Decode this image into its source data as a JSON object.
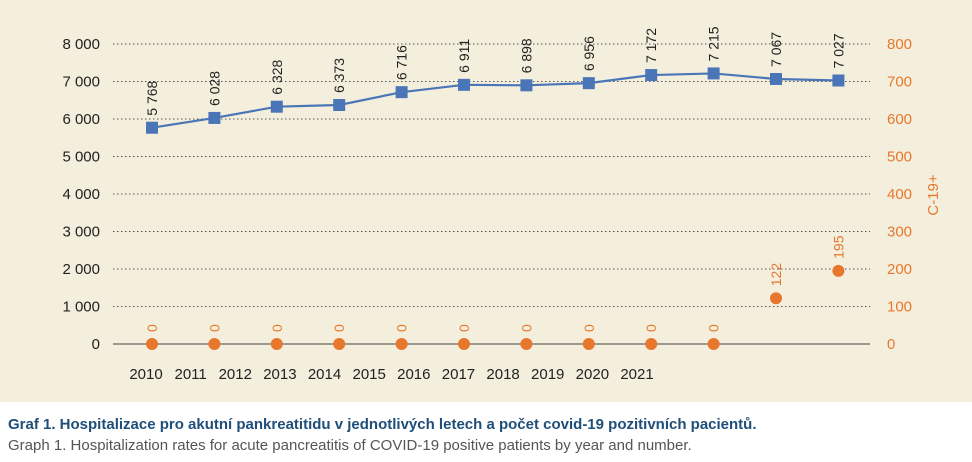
{
  "chart_data": {
    "type": "line",
    "x_tick_labels": [
      "2010",
      "2011",
      "2012",
      "2013",
      "2014",
      "2015",
      "2016",
      "2017",
      "2018",
      "2019",
      "2020",
      "2021"
    ],
    "left_axis": {
      "ylim": [
        0,
        8000
      ],
      "tick_labels": [
        "0",
        "1 000",
        "2 000",
        "3 000",
        "4 000",
        "5 000",
        "6 000",
        "7 000",
        "8 000"
      ]
    },
    "right_axis": {
      "label": "C-19+",
      "ylim": [
        0,
        800
      ],
      "tick_labels": [
        "0",
        "100",
        "200",
        "300",
        "400",
        "500",
        "600",
        "700",
        "800"
      ]
    },
    "grid": "horizontal dotted",
    "series": [
      {
        "axis": "left",
        "marker": "square",
        "color": "#4a76b8",
        "values": [
          5768,
          6028,
          6328,
          6373,
          6716,
          6911,
          6898,
          6956,
          7172,
          7215,
          7067,
          7027
        ],
        "labels": [
          "5 768",
          "6 028",
          "6 328",
          "6 373",
          "6 716",
          "6 911",
          "6 898",
          "6 956",
          "7 172",
          "7 215",
          "7 067",
          "7 027"
        ]
      },
      {
        "axis": "right",
        "marker": "circle",
        "color": "#e8772e",
        "values": [
          0,
          0,
          0,
          0,
          0,
          0,
          0,
          0,
          0,
          0,
          122,
          195
        ],
        "labels": [
          "0",
          "0",
          "0",
          "0",
          "0",
          "0",
          "0",
          "0",
          "0",
          "0",
          "122",
          "195"
        ]
      }
    ]
  },
  "caption": {
    "czech": "Graf 1. Hospitalizace pro akutní pankreatitidu v jednotlivých letech a počet covid-19 pozitivních pacientů.",
    "english": "Graph 1. Hospitalization rates for acute pancreatitis of COVID-19 positive patients by year and number."
  }
}
